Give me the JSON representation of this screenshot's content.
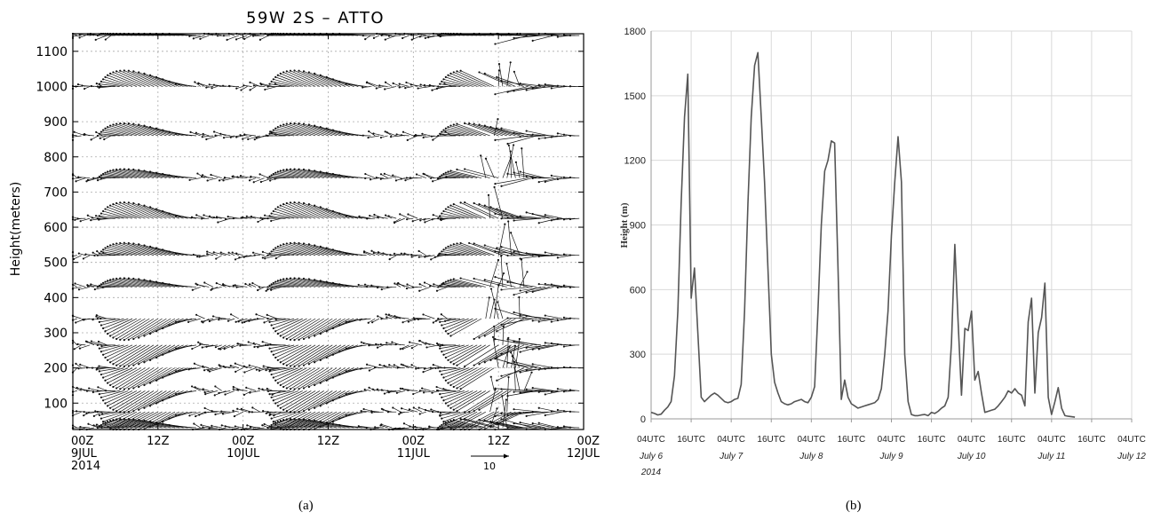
{
  "chart_data": [
    {
      "type": "wind-profile",
      "title": "59W 2S – ATTO",
      "ylabel": "Height(meters)",
      "ylim": [
        25,
        1150
      ],
      "y_ticks": [
        100,
        200,
        300,
        400,
        500,
        600,
        700,
        800,
        900,
        1000,
        1100
      ],
      "x_ticks": [
        {
          "t": 0,
          "top": "00Z",
          "mid": "9JUL",
          "bot": "2014"
        },
        {
          "t": 12,
          "top": "12Z",
          "mid": "",
          "bot": ""
        },
        {
          "t": 24,
          "top": "00Z",
          "mid": "10JUL",
          "bot": ""
        },
        {
          "t": 36,
          "top": "12Z",
          "mid": "",
          "bot": ""
        },
        {
          "t": 48,
          "top": "00Z",
          "mid": "11JUL",
          "bot": ""
        },
        {
          "t": 60,
          "top": "12Z",
          "mid": "",
          "bot": ""
        },
        {
          "t": 72,
          "top": "00Z",
          "mid": "12JUL",
          "bot": ""
        }
      ],
      "xlim": [
        0,
        72
      ],
      "reference_vector_label": "10",
      "levels": [
        30,
        75,
        135,
        200,
        265,
        340,
        430,
        520,
        625,
        740,
        860,
        1000,
        1145
      ],
      "caption": "(a)"
    },
    {
      "type": "line",
      "ylabel": "Height (m)",
      "ylim": [
        0,
        1800
      ],
      "y_ticks": [
        0,
        300,
        600,
        900,
        1200,
        1500,
        1800
      ],
      "x_ticks": [
        {
          "t": 0,
          "top": "04UTC",
          "mid": "July 6",
          "bot": "2014"
        },
        {
          "t": 12,
          "top": "16UTC",
          "mid": "",
          "bot": ""
        },
        {
          "t": 24,
          "top": "04UTC",
          "mid": "July 7",
          "bot": ""
        },
        {
          "t": 36,
          "top": "16UTC",
          "mid": "",
          "bot": ""
        },
        {
          "t": 48,
          "top": "04UTC",
          "mid": "July 8",
          "bot": ""
        },
        {
          "t": 60,
          "top": "16UTC",
          "mid": "",
          "bot": ""
        },
        {
          "t": 72,
          "top": "04UTC",
          "mid": "July 9",
          "bot": ""
        },
        {
          "t": 84,
          "top": "16UTC",
          "mid": "",
          "bot": ""
        },
        {
          "t": 96,
          "top": "04UTC",
          "mid": "July 10",
          "bot": ""
        },
        {
          "t": 108,
          "top": "16UTC",
          "mid": "",
          "bot": ""
        },
        {
          "t": 120,
          "top": "04UTC",
          "mid": "July 11",
          "bot": ""
        },
        {
          "t": 132,
          "top": "16UTC",
          "mid": "",
          "bot": ""
        },
        {
          "t": 144,
          "top": "04UTC",
          "mid": "July 12",
          "bot": ""
        }
      ],
      "xlim": [
        0,
        144
      ],
      "grid": true,
      "series": [
        {
          "color": "#555555",
          "points": [
            [
              0,
              30
            ],
            [
              1,
              25
            ],
            [
              2,
              18
            ],
            [
              3,
              22
            ],
            [
              4,
              40
            ],
            [
              5,
              55
            ],
            [
              6,
              80
            ],
            [
              7,
              200
            ],
            [
              8,
              500
            ],
            [
              9,
              1000
            ],
            [
              10,
              1400
            ],
            [
              11,
              1600
            ],
            [
              12,
              560
            ],
            [
              13,
              700
            ],
            [
              14,
              400
            ],
            [
              15,
              100
            ],
            [
              16,
              80
            ],
            [
              17,
              95
            ],
            [
              18,
              110
            ],
            [
              19,
              120
            ],
            [
              20,
              110
            ],
            [
              21,
              95
            ],
            [
              22,
              80
            ],
            [
              23,
              75
            ],
            [
              24,
              80
            ],
            [
              25,
              90
            ],
            [
              26,
              95
            ],
            [
              27,
              160
            ],
            [
              28,
              500
            ],
            [
              29,
              1000
            ],
            [
              30,
              1400
            ],
            [
              31,
              1640
            ],
            [
              32,
              1700
            ],
            [
              33,
              1400
            ],
            [
              34,
              1100
            ],
            [
              35,
              700
            ],
            [
              36,
              300
            ],
            [
              37,
              170
            ],
            [
              38,
              120
            ],
            [
              39,
              80
            ],
            [
              40,
              70
            ],
            [
              41,
              65
            ],
            [
              42,
              70
            ],
            [
              43,
              80
            ],
            [
              44,
              85
            ],
            [
              45,
              90
            ],
            [
              46,
              80
            ],
            [
              47,
              75
            ],
            [
              48,
              100
            ],
            [
              49,
              150
            ],
            [
              50,
              500
            ],
            [
              51,
              900
            ],
            [
              52,
              1150
            ],
            [
              53,
              1200
            ],
            [
              54,
              1290
            ],
            [
              55,
              1280
            ],
            [
              56,
              700
            ],
            [
              57,
              90
            ],
            [
              58,
              180
            ],
            [
              59,
              100
            ],
            [
              60,
              70
            ],
            [
              61,
              60
            ],
            [
              62,
              50
            ],
            [
              63,
              55
            ],
            [
              64,
              60
            ],
            [
              65,
              65
            ],
            [
              66,
              70
            ],
            [
              67,
              75
            ],
            [
              68,
              90
            ],
            [
              69,
              140
            ],
            [
              70,
              300
            ],
            [
              71,
              500
            ],
            [
              72,
              850
            ],
            [
              73,
              1100
            ],
            [
              74,
              1310
            ],
            [
              75,
              1100
            ],
            [
              76,
              300
            ],
            [
              77,
              80
            ],
            [
              78,
              20
            ],
            [
              79,
              15
            ],
            [
              80,
              15
            ],
            [
              81,
              18
            ],
            [
              82,
              20
            ],
            [
              83,
              15
            ],
            [
              84,
              30
            ],
            [
              85,
              25
            ],
            [
              86,
              35
            ],
            [
              87,
              50
            ],
            [
              88,
              60
            ],
            [
              89,
              100
            ],
            [
              90,
              350
            ],
            [
              91,
              810
            ],
            [
              92,
              450
            ],
            [
              93,
              110
            ],
            [
              94,
              420
            ],
            [
              95,
              410
            ],
            [
              96,
              500
            ],
            [
              97,
              180
            ],
            [
              98,
              220
            ],
            [
              99,
              120
            ],
            [
              100,
              30
            ],
            [
              101,
              35
            ],
            [
              102,
              40
            ],
            [
              103,
              45
            ],
            [
              104,
              60
            ],
            [
              105,
              80
            ],
            [
              106,
              100
            ],
            [
              107,
              130
            ],
            [
              108,
              120
            ],
            [
              109,
              140
            ],
            [
              110,
              120
            ],
            [
              111,
              110
            ],
            [
              112,
              60
            ],
            [
              113,
              450
            ],
            [
              114,
              560
            ],
            [
              115,
              120
            ],
            [
              116,
              400
            ],
            [
              117,
              470
            ],
            [
              118,
              630
            ],
            [
              119,
              100
            ],
            [
              120,
              20
            ],
            [
              121,
              80
            ],
            [
              122,
              145
            ],
            [
              123,
              50
            ],
            [
              124,
              15
            ],
            [
              125,
              12
            ],
            [
              126,
              10
            ],
            [
              127,
              8
            ]
          ]
        }
      ],
      "caption": "(b)"
    }
  ]
}
